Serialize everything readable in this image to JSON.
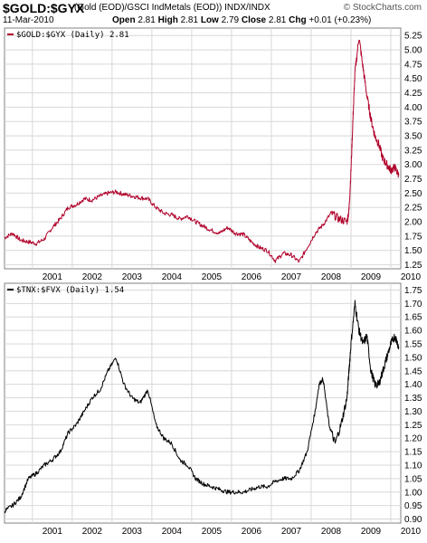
{
  "header": {
    "symbol": "$GOLD:$GYX",
    "description": "(Gold (EOD)/GSCI IndMetals (EOD))  INDX/INDX",
    "brand": "© StockCharts.com",
    "date": "11-Mar-2010",
    "open_label": "Open",
    "open": "2.81",
    "high_label": "High",
    "high": "2.81",
    "low_label": "Low",
    "low": "2.79",
    "close_label": "Close",
    "close": "2.81",
    "chg_label": "Chg",
    "chg": "+0.01 (+0.23%)"
  },
  "colors": {
    "series1": "#b0002a",
    "series2": "#000000",
    "grid": "#d8d8d8",
    "frame": "#808080"
  },
  "chart_data": [
    {
      "type": "line",
      "title": "$GOLD:$GYX (Daily) 2.81",
      "y_axis": "right",
      "grid": true,
      "ylim": [
        1.18,
        5.38
      ],
      "y_ticks": [
        "1.25",
        "1.50",
        "1.75",
        "2.00",
        "2.25",
        "2.50",
        "2.75",
        "3.00",
        "3.25",
        "3.50",
        "3.75",
        "4.00",
        "4.25",
        "4.50",
        "4.75",
        "5.00",
        "5.25"
      ],
      "x_ticks": [
        "2001",
        "2002",
        "2003",
        "2004",
        "2005",
        "2006",
        "2007",
        "2008",
        "2009",
        "2010"
      ],
      "xlim": [
        2000.3,
        2010.25
      ],
      "series": [
        {
          "name": "$GOLD:$GYX",
          "x": [
            2000.3,
            2000.5,
            2000.7,
            2000.9,
            2001.1,
            2001.3,
            2001.5,
            2001.7,
            2001.9,
            2002.1,
            2002.3,
            2002.5,
            2002.7,
            2002.9,
            2003.1,
            2003.3,
            2003.5,
            2003.7,
            2003.9,
            2004.1,
            2004.3,
            2004.5,
            2004.7,
            2004.9,
            2005.1,
            2005.3,
            2005.5,
            2005.7,
            2005.9,
            2006.1,
            2006.3,
            2006.5,
            2006.7,
            2006.9,
            2007.1,
            2007.3,
            2007.5,
            2007.7,
            2007.9,
            2008.1,
            2008.3,
            2008.5,
            2008.7,
            2008.9,
            2008.95,
            2009.0,
            2009.05,
            2009.1,
            2009.2,
            2009.3,
            2009.4,
            2009.5,
            2009.6,
            2009.7,
            2009.8,
            2009.9,
            2010.0,
            2010.1,
            2010.2
          ],
          "values": [
            1.72,
            1.8,
            1.68,
            1.65,
            1.62,
            1.7,
            1.9,
            2.05,
            2.25,
            2.3,
            2.4,
            2.38,
            2.45,
            2.5,
            2.52,
            2.48,
            2.45,
            2.42,
            2.4,
            2.25,
            2.15,
            2.12,
            2.05,
            2.1,
            2.0,
            1.92,
            1.85,
            1.8,
            1.9,
            1.8,
            1.78,
            1.65,
            1.55,
            1.5,
            1.32,
            1.45,
            1.42,
            1.3,
            1.55,
            1.8,
            1.95,
            2.15,
            2.05,
            2.0,
            2.2,
            2.9,
            3.8,
            4.6,
            5.22,
            4.7,
            4.2,
            3.8,
            3.5,
            3.35,
            3.1,
            3.0,
            2.9,
            2.95,
            2.81
          ]
        }
      ]
    },
    {
      "type": "line",
      "title": "$TNX:$FVX (Daily) 1.54",
      "y_axis": "right",
      "grid": true,
      "ylim": [
        0.885,
        1.775
      ],
      "y_ticks": [
        "0.90",
        "0.95",
        "1.00",
        "1.05",
        "1.10",
        "1.15",
        "1.20",
        "1.25",
        "1.30",
        "1.35",
        "1.40",
        "1.45",
        "1.50",
        "1.55",
        "1.60",
        "1.65",
        "1.70",
        "1.75"
      ],
      "x_ticks": [
        "2001",
        "2002",
        "2003",
        "2004",
        "2005",
        "2006",
        "2007",
        "2008",
        "2009",
        "2010"
      ],
      "xlim": [
        2000.3,
        2010.25
      ],
      "series": [
        {
          "name": "$TNX:$FVX",
          "x": [
            2000.3,
            2000.5,
            2000.7,
            2000.9,
            2001.1,
            2001.3,
            2001.5,
            2001.7,
            2001.9,
            2002.1,
            2002.3,
            2002.5,
            2002.7,
            2002.9,
            2003.1,
            2003.3,
            2003.5,
            2003.7,
            2003.9,
            2004.1,
            2004.3,
            2004.5,
            2004.7,
            2004.9,
            2005.1,
            2005.3,
            2005.5,
            2005.7,
            2005.9,
            2006.1,
            2006.3,
            2006.5,
            2006.7,
            2006.9,
            2007.1,
            2007.3,
            2007.5,
            2007.7,
            2007.9,
            2008.1,
            2008.2,
            2008.3,
            2008.45,
            2008.6,
            2008.75,
            2008.9,
            2008.95,
            2009.0,
            2009.1,
            2009.2,
            2009.3,
            2009.4,
            2009.5,
            2009.6,
            2009.7,
            2009.8,
            2009.9,
            2010.0,
            2010.1,
            2010.2
          ],
          "values": [
            0.93,
            0.95,
            0.98,
            1.05,
            1.07,
            1.1,
            1.12,
            1.15,
            1.22,
            1.25,
            1.3,
            1.35,
            1.38,
            1.45,
            1.5,
            1.4,
            1.35,
            1.33,
            1.38,
            1.25,
            1.2,
            1.18,
            1.12,
            1.1,
            1.05,
            1.03,
            1.02,
            1.01,
            1.0,
            1.0,
            1.0,
            1.01,
            1.02,
            1.02,
            1.04,
            1.05,
            1.05,
            1.08,
            1.15,
            1.3,
            1.4,
            1.42,
            1.25,
            1.18,
            1.25,
            1.35,
            1.45,
            1.55,
            1.7,
            1.6,
            1.55,
            1.58,
            1.45,
            1.4,
            1.4,
            1.45,
            1.5,
            1.55,
            1.58,
            1.54
          ]
        }
      ]
    }
  ]
}
